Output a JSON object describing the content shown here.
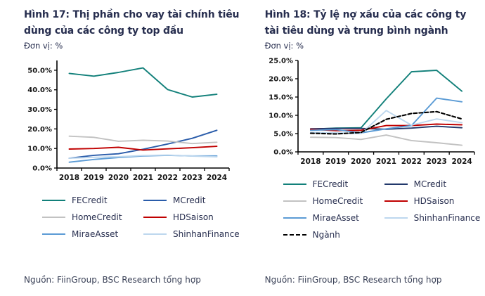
{
  "figures": [
    {
      "title": "Hình 17: Thị phần cho vay tài chính tiêu dùng của các công ty top đầu",
      "unit_label": "Đơn vị: %",
      "source": "Nguồn: FiinGroup, BSC Research tổng hợp"
    },
    {
      "title": "Hình 18: Tỷ lệ nợ xấu của các công ty tài tiêu dùng và trung bình ngành",
      "unit_label": "Đơn vị: %",
      "source": "Nguồn: FiinGroup, BSC Research tổng hợp"
    }
  ],
  "chart_data": [
    {
      "type": "line",
      "title": "Hình 17: Thị phần cho vay tài chính tiêu dùng của các công ty top đầu",
      "xlabel": "",
      "ylabel": "Đơn vị: %",
      "categories": [
        "2018",
        "2019",
        "2020",
        "2021",
        "2022",
        "2023",
        "2024"
      ],
      "ylim": [
        0,
        55
      ],
      "yticks": [
        0,
        10,
        20,
        30,
        40,
        50
      ],
      "ytick_labels": [
        "0.0%",
        "10.0%",
        "20.0%",
        "30.0%",
        "40.0%",
        "50.0%"
      ],
      "grid": false,
      "legend_position": "bottom",
      "series": [
        {
          "name": "FECredit",
          "color": "#12807A",
          "dash": null,
          "values": [
            48.4,
            47.0,
            48.9,
            51.2,
            40.1,
            36.3,
            37.7
          ]
        },
        {
          "name": "MCredit",
          "color": "#2A5CAA",
          "dash": null,
          "values": [
            5.0,
            6.5,
            7.3,
            9.6,
            12.3,
            15.2,
            19.3
          ]
        },
        {
          "name": "HomeCredit",
          "color": "#C2C2C2",
          "dash": null,
          "values": [
            16.3,
            15.7,
            13.7,
            14.2,
            13.8,
            12.5,
            13.2
          ]
        },
        {
          "name": "HDSaison",
          "color": "#C00000",
          "dash": null,
          "values": [
            9.7,
            10.0,
            10.6,
            9.2,
            9.8,
            10.4,
            11.1
          ]
        },
        {
          "name": "MiraeAsset",
          "color": "#5B9BD5",
          "dash": null,
          "values": [
            3.0,
            4.4,
            5.4,
            6.2,
            6.5,
            6.2,
            6.2
          ]
        },
        {
          "name": "ShinhanFinance",
          "color": "#BDD7EE",
          "dash": null,
          "values": [
            5.0,
            5.5,
            5.8,
            6.4,
            6.6,
            6.1,
            5.7
          ]
        }
      ]
    },
    {
      "type": "line",
      "title": "Hình 18: Tỷ lệ nợ xấu của các công ty tài tiêu dùng và trung bình ngành",
      "xlabel": "",
      "ylabel": "Đơn vị: %",
      "categories": [
        "2018",
        "2019",
        "2020",
        "2021",
        "2022",
        "2023",
        "2024"
      ],
      "ylim": [
        0,
        25
      ],
      "yticks": [
        0,
        5,
        10,
        15,
        20,
        25
      ],
      "ytick_labels": [
        "0.0%",
        "5.0%",
        "10.0%",
        "15.0%",
        "20.0%",
        "25.0%"
      ],
      "grid": false,
      "legend_position": "bottom",
      "series": [
        {
          "name": "FECredit",
          "color": "#12807A",
          "dash": null,
          "values": [
            6.2,
            6.5,
            6.6,
            14.5,
            21.9,
            22.3,
            16.6
          ]
        },
        {
          "name": "MCredit",
          "color": "#22386B",
          "dash": null,
          "values": [
            6.3,
            6.4,
            6.4,
            6.2,
            6.5,
            7.0,
            6.6
          ]
        },
        {
          "name": "HomeCredit",
          "color": "#C2C2C2",
          "dash": null,
          "values": [
            4.0,
            3.9,
            3.4,
            4.6,
            3.1,
            2.5,
            1.8
          ]
        },
        {
          "name": "HDSaison",
          "color": "#C00000",
          "dash": null,
          "values": [
            6.2,
            5.8,
            5.9,
            7.2,
            7.2,
            7.6,
            7.4
          ]
        },
        {
          "name": "MiraeAsset",
          "color": "#5B9BD5",
          "dash": null,
          "values": [
            5.9,
            6.1,
            5.2,
            6.3,
            7.2,
            14.7,
            13.7
          ]
        },
        {
          "name": "ShinhanFinance",
          "color": "#BDD7EE",
          "dash": null,
          "values": [
            5.3,
            5.2,
            5.0,
            11.3,
            7.3,
            9.0,
            8.0
          ]
        },
        {
          "name": "Ngành",
          "color": "#000000",
          "dash": "5,3",
          "values": [
            5.1,
            4.9,
            5.3,
            8.9,
            10.5,
            11.0,
            9.0
          ]
        }
      ]
    }
  ]
}
